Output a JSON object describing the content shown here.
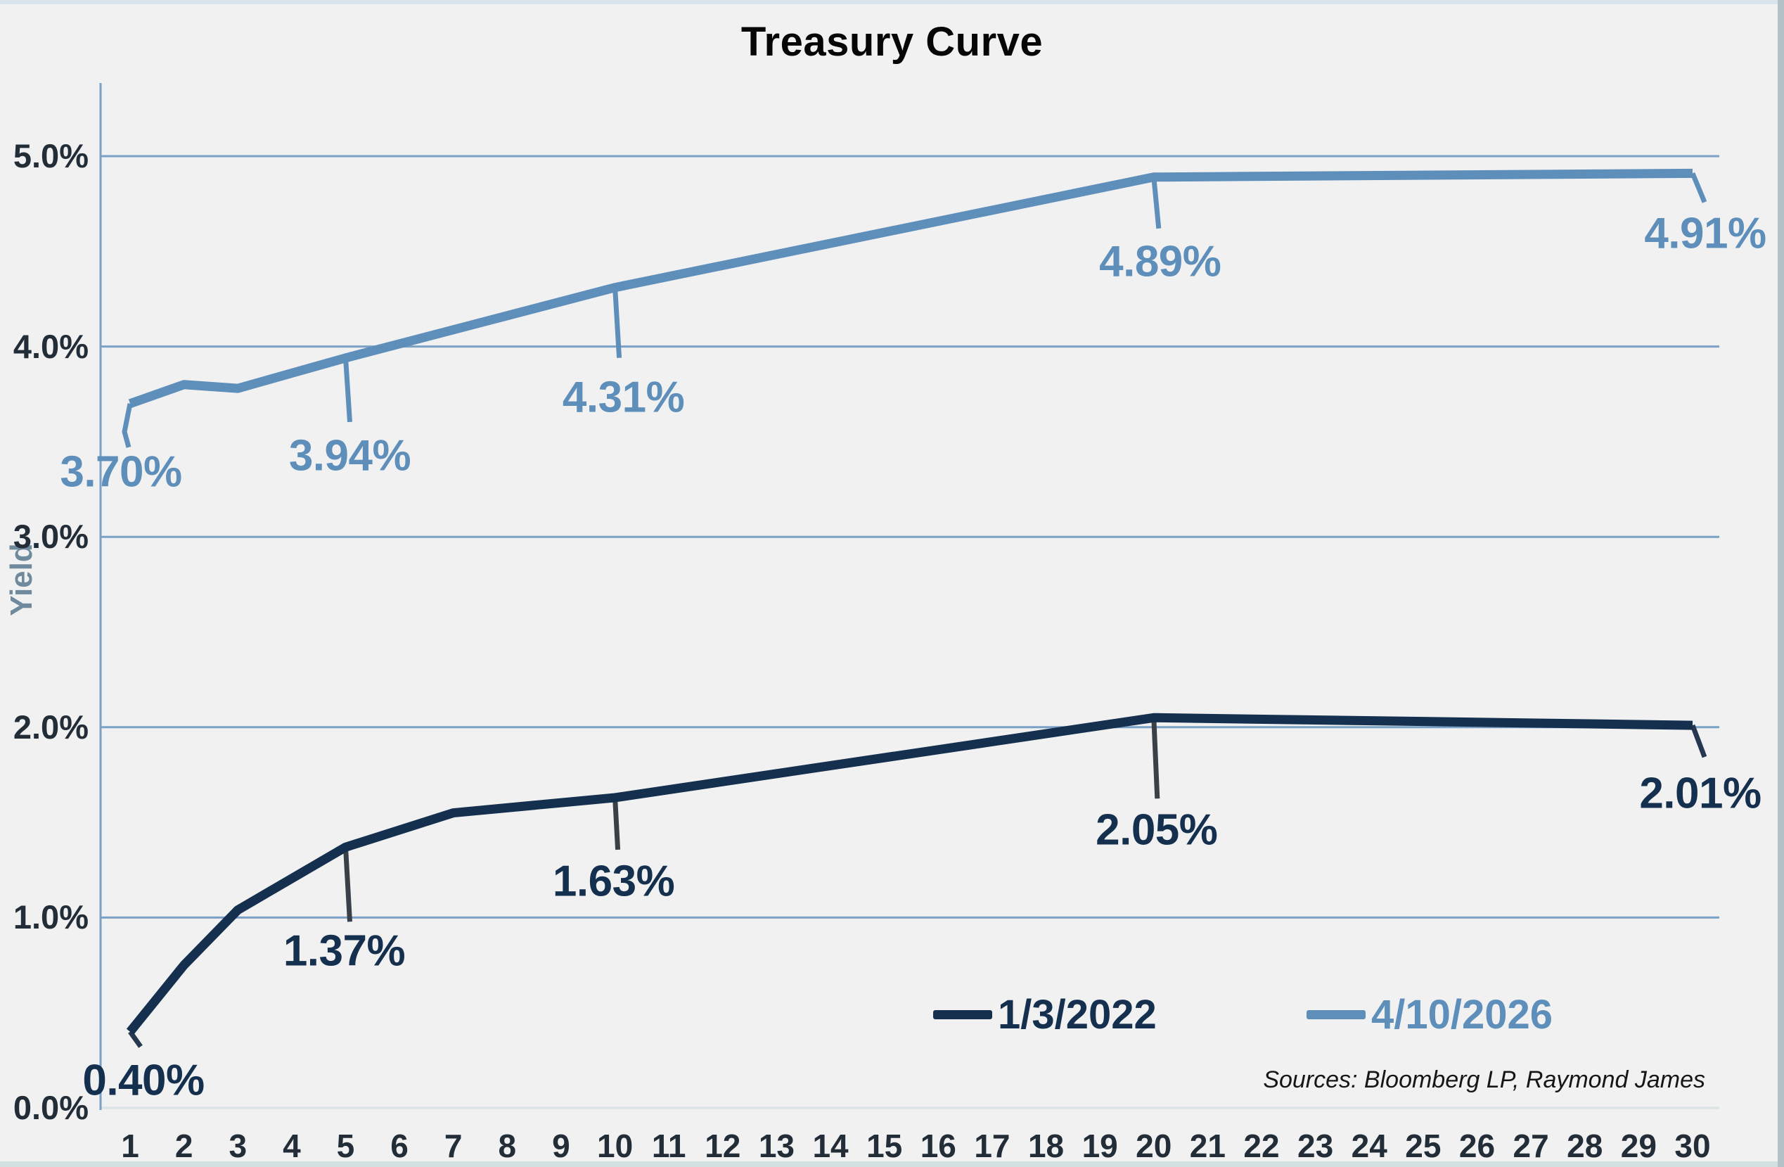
{
  "frame": {
    "title": "Treasury Curve",
    "y_axis_title": "Yield",
    "sources": "Sources: Bloomberg LP, Raymond James"
  },
  "legend": {
    "items": [
      {
        "label": "1/3/2022",
        "color": "#14304e"
      },
      {
        "label": "4/10/2026",
        "color": "#5e8eba"
      }
    ]
  },
  "axes": {
    "y_ticks": [
      {
        "value": 0,
        "label": "0.0%"
      },
      {
        "value": 1,
        "label": "1.0%"
      },
      {
        "value": 2,
        "label": "2.0%"
      },
      {
        "value": 3,
        "label": "3.0%"
      },
      {
        "value": 4,
        "label": "4.0%"
      },
      {
        "value": 5,
        "label": "5.0%"
      }
    ],
    "x_ticks": [
      1,
      2,
      3,
      4,
      5,
      6,
      7,
      8,
      9,
      10,
      11,
      12,
      13,
      14,
      15,
      16,
      17,
      18,
      19,
      20,
      21,
      22,
      23,
      24,
      25,
      26,
      27,
      28,
      29,
      30
    ]
  },
  "style": {
    "background": "#f1f1f2",
    "gridline_color": "#7ba1c6",
    "baseline_color": "#d8e3e4",
    "axis_color": "#7ba1c6",
    "tick_label_color": "#232d37",
    "leader_gray": "#3a4047",
    "series_dark": "#14304e",
    "series_blue": "#5e8eba"
  },
  "chart_data": {
    "type": "line",
    "title": "Treasury Curve",
    "xlabel": "",
    "ylabel": "Yield",
    "xlim": [
      1,
      30
    ],
    "ylim": [
      0,
      5.5
    ],
    "grid": "horizontal",
    "legend_position": "bottom-right-inside",
    "series": [
      {
        "name": "1/3/2022",
        "color": "#14304e",
        "x": [
          1,
          2,
          3,
          5,
          7,
          10,
          20,
          30
        ],
        "y": [
          0.4,
          0.75,
          1.04,
          1.37,
          1.55,
          1.63,
          2.05,
          2.01
        ]
      },
      {
        "name": "4/10/2026",
        "color": "#5e8eba",
        "x": [
          1,
          2,
          3,
          5,
          10,
          20,
          30
        ],
        "y": [
          3.7,
          3.8,
          3.78,
          3.94,
          4.31,
          4.89,
          4.91
        ]
      }
    ],
    "annotations": [
      {
        "series": "1/3/2022",
        "x": 1,
        "value": 0.4,
        "text": "0.40%"
      },
      {
        "series": "1/3/2022",
        "x": 5,
        "value": 1.37,
        "text": "1.37%"
      },
      {
        "series": "1/3/2022",
        "x": 10,
        "value": 1.63,
        "text": "1.63%"
      },
      {
        "series": "1/3/2022",
        "x": 20,
        "value": 2.05,
        "text": "2.05%"
      },
      {
        "series": "1/3/2022",
        "x": 30,
        "value": 2.01,
        "text": "2.01%"
      },
      {
        "series": "4/10/2026",
        "x": 1,
        "value": 3.7,
        "text": "3.70%"
      },
      {
        "series": "4/10/2026",
        "x": 5,
        "value": 3.94,
        "text": "3.94%"
      },
      {
        "series": "4/10/2026",
        "x": 10,
        "value": 4.31,
        "text": "4.31%"
      },
      {
        "series": "4/10/2026",
        "x": 20,
        "value": 4.89,
        "text": "4.89%"
      },
      {
        "series": "4/10/2026",
        "x": 30,
        "value": 4.91,
        "text": "4.91%"
      }
    ]
  }
}
